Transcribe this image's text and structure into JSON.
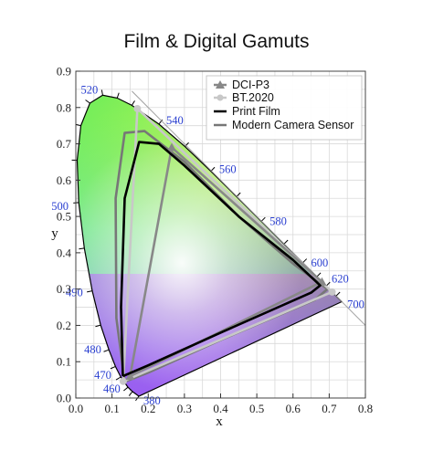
{
  "chart_data": {
    "type": "scatter",
    "title": "Film & Digital Gamuts",
    "xlabel": "x",
    "ylabel": "y",
    "xlim": [
      0,
      0.8
    ],
    "ylim": [
      0,
      0.9
    ],
    "x_ticks": [
      "0.0",
      "0.1",
      "0.2",
      "0.3",
      "0.4",
      "0.5",
      "0.6",
      "0.7",
      "0.8"
    ],
    "y_ticks": [
      "0.0",
      "0.1",
      "0.2",
      "0.3",
      "0.4",
      "0.5",
      "0.6",
      "0.7",
      "0.8",
      "0.9"
    ],
    "grid": true,
    "legend_position": "top-right",
    "spectral_locus": [
      {
        "nm": 380,
        "x": 0.1741,
        "y": 0.005
      },
      {
        "nm": 450,
        "x": 0.1566,
        "y": 0.0177
      },
      {
        "nm": 460,
        "x": 0.144,
        "y": 0.0297
      },
      {
        "nm": 470,
        "x": 0.1241,
        "y": 0.0578
      },
      {
        "nm": 475,
        "x": 0.1096,
        "y": 0.0868
      },
      {
        "nm": 480,
        "x": 0.0913,
        "y": 0.1327
      },
      {
        "nm": 485,
        "x": 0.0687,
        "y": 0.2007
      },
      {
        "nm": 490,
        "x": 0.0454,
        "y": 0.295
      },
      {
        "nm": 495,
        "x": 0.0235,
        "y": 0.4127
      },
      {
        "nm": 500,
        "x": 0.0082,
        "y": 0.5384
      },
      {
        "nm": 505,
        "x": 0.0039,
        "y": 0.6548
      },
      {
        "nm": 510,
        "x": 0.0139,
        "y": 0.7502
      },
      {
        "nm": 515,
        "x": 0.0389,
        "y": 0.812
      },
      {
        "nm": 520,
        "x": 0.0743,
        "y": 0.8338
      },
      {
        "nm": 525,
        "x": 0.1142,
        "y": 0.8262
      },
      {
        "nm": 530,
        "x": 0.1547,
        "y": 0.8059
      },
      {
        "nm": 540,
        "x": 0.2296,
        "y": 0.7543
      },
      {
        "nm": 550,
        "x": 0.3016,
        "y": 0.6923
      },
      {
        "nm": 560,
        "x": 0.3731,
        "y": 0.6245
      },
      {
        "nm": 570,
        "x": 0.4441,
        "y": 0.5547
      },
      {
        "nm": 580,
        "x": 0.5125,
        "y": 0.4866
      },
      {
        "nm": 590,
        "x": 0.5752,
        "y": 0.4242
      },
      {
        "nm": 600,
        "x": 0.627,
        "y": 0.3725
      },
      {
        "nm": 610,
        "x": 0.6658,
        "y": 0.334
      },
      {
        "nm": 620,
        "x": 0.6915,
        "y": 0.3083
      },
      {
        "nm": 640,
        "x": 0.719,
        "y": 0.2809
      },
      {
        "nm": 700,
        "x": 0.7347,
        "y": 0.2653
      }
    ],
    "wavelength_labels": [
      {
        "label": "380",
        "nm": 380
      },
      {
        "label": "460",
        "nm": 460
      },
      {
        "label": "470",
        "nm": 470
      },
      {
        "label": "480",
        "nm": 480
      },
      {
        "label": "490",
        "nm": 490
      },
      {
        "label": "500",
        "nm": 500
      },
      {
        "label": "520",
        "nm": 520
      },
      {
        "label": "540",
        "nm": 540
      },
      {
        "label": "560",
        "nm": 560
      },
      {
        "label": "580",
        "nm": 580
      },
      {
        "label": "600",
        "nm": 600
      },
      {
        "label": "620",
        "nm": 620
      },
      {
        "label": "700",
        "nm": 700
      }
    ],
    "series": [
      {
        "name": "DCI-P3",
        "color": "#888888",
        "marker": "triangle",
        "x": [
          0.68,
          0.265,
          0.15
        ],
        "y": [
          0.32,
          0.69,
          0.06
        ]
      },
      {
        "name": "BT.2020",
        "color": "#c8c8c8",
        "marker": "circle",
        "x": [
          0.708,
          0.17,
          0.131
        ],
        "y": [
          0.292,
          0.797,
          0.046
        ]
      },
      {
        "name": "Print Film",
        "color": "#000000",
        "marker": "none",
        "x": [
          0.13,
          0.125,
          0.135,
          0.175,
          0.23,
          0.3,
          0.45,
          0.6,
          0.675,
          0.65,
          0.4,
          0.2,
          0.13
        ],
        "y": [
          0.06,
          0.25,
          0.55,
          0.705,
          0.7,
          0.64,
          0.5,
          0.38,
          0.31,
          0.29,
          0.18,
          0.09,
          0.06
        ]
      },
      {
        "name": "Modern Camera Sensor",
        "color": "#777777",
        "marker": "none",
        "x": [
          0.135,
          0.112,
          0.11,
          0.135,
          0.19,
          0.3,
          0.45,
          0.6,
          0.695,
          0.66,
          0.4,
          0.2,
          0.135
        ],
        "y": [
          0.045,
          0.22,
          0.55,
          0.73,
          0.735,
          0.65,
          0.5,
          0.37,
          0.3,
          0.27,
          0.16,
          0.07,
          0.045
        ]
      }
    ]
  }
}
